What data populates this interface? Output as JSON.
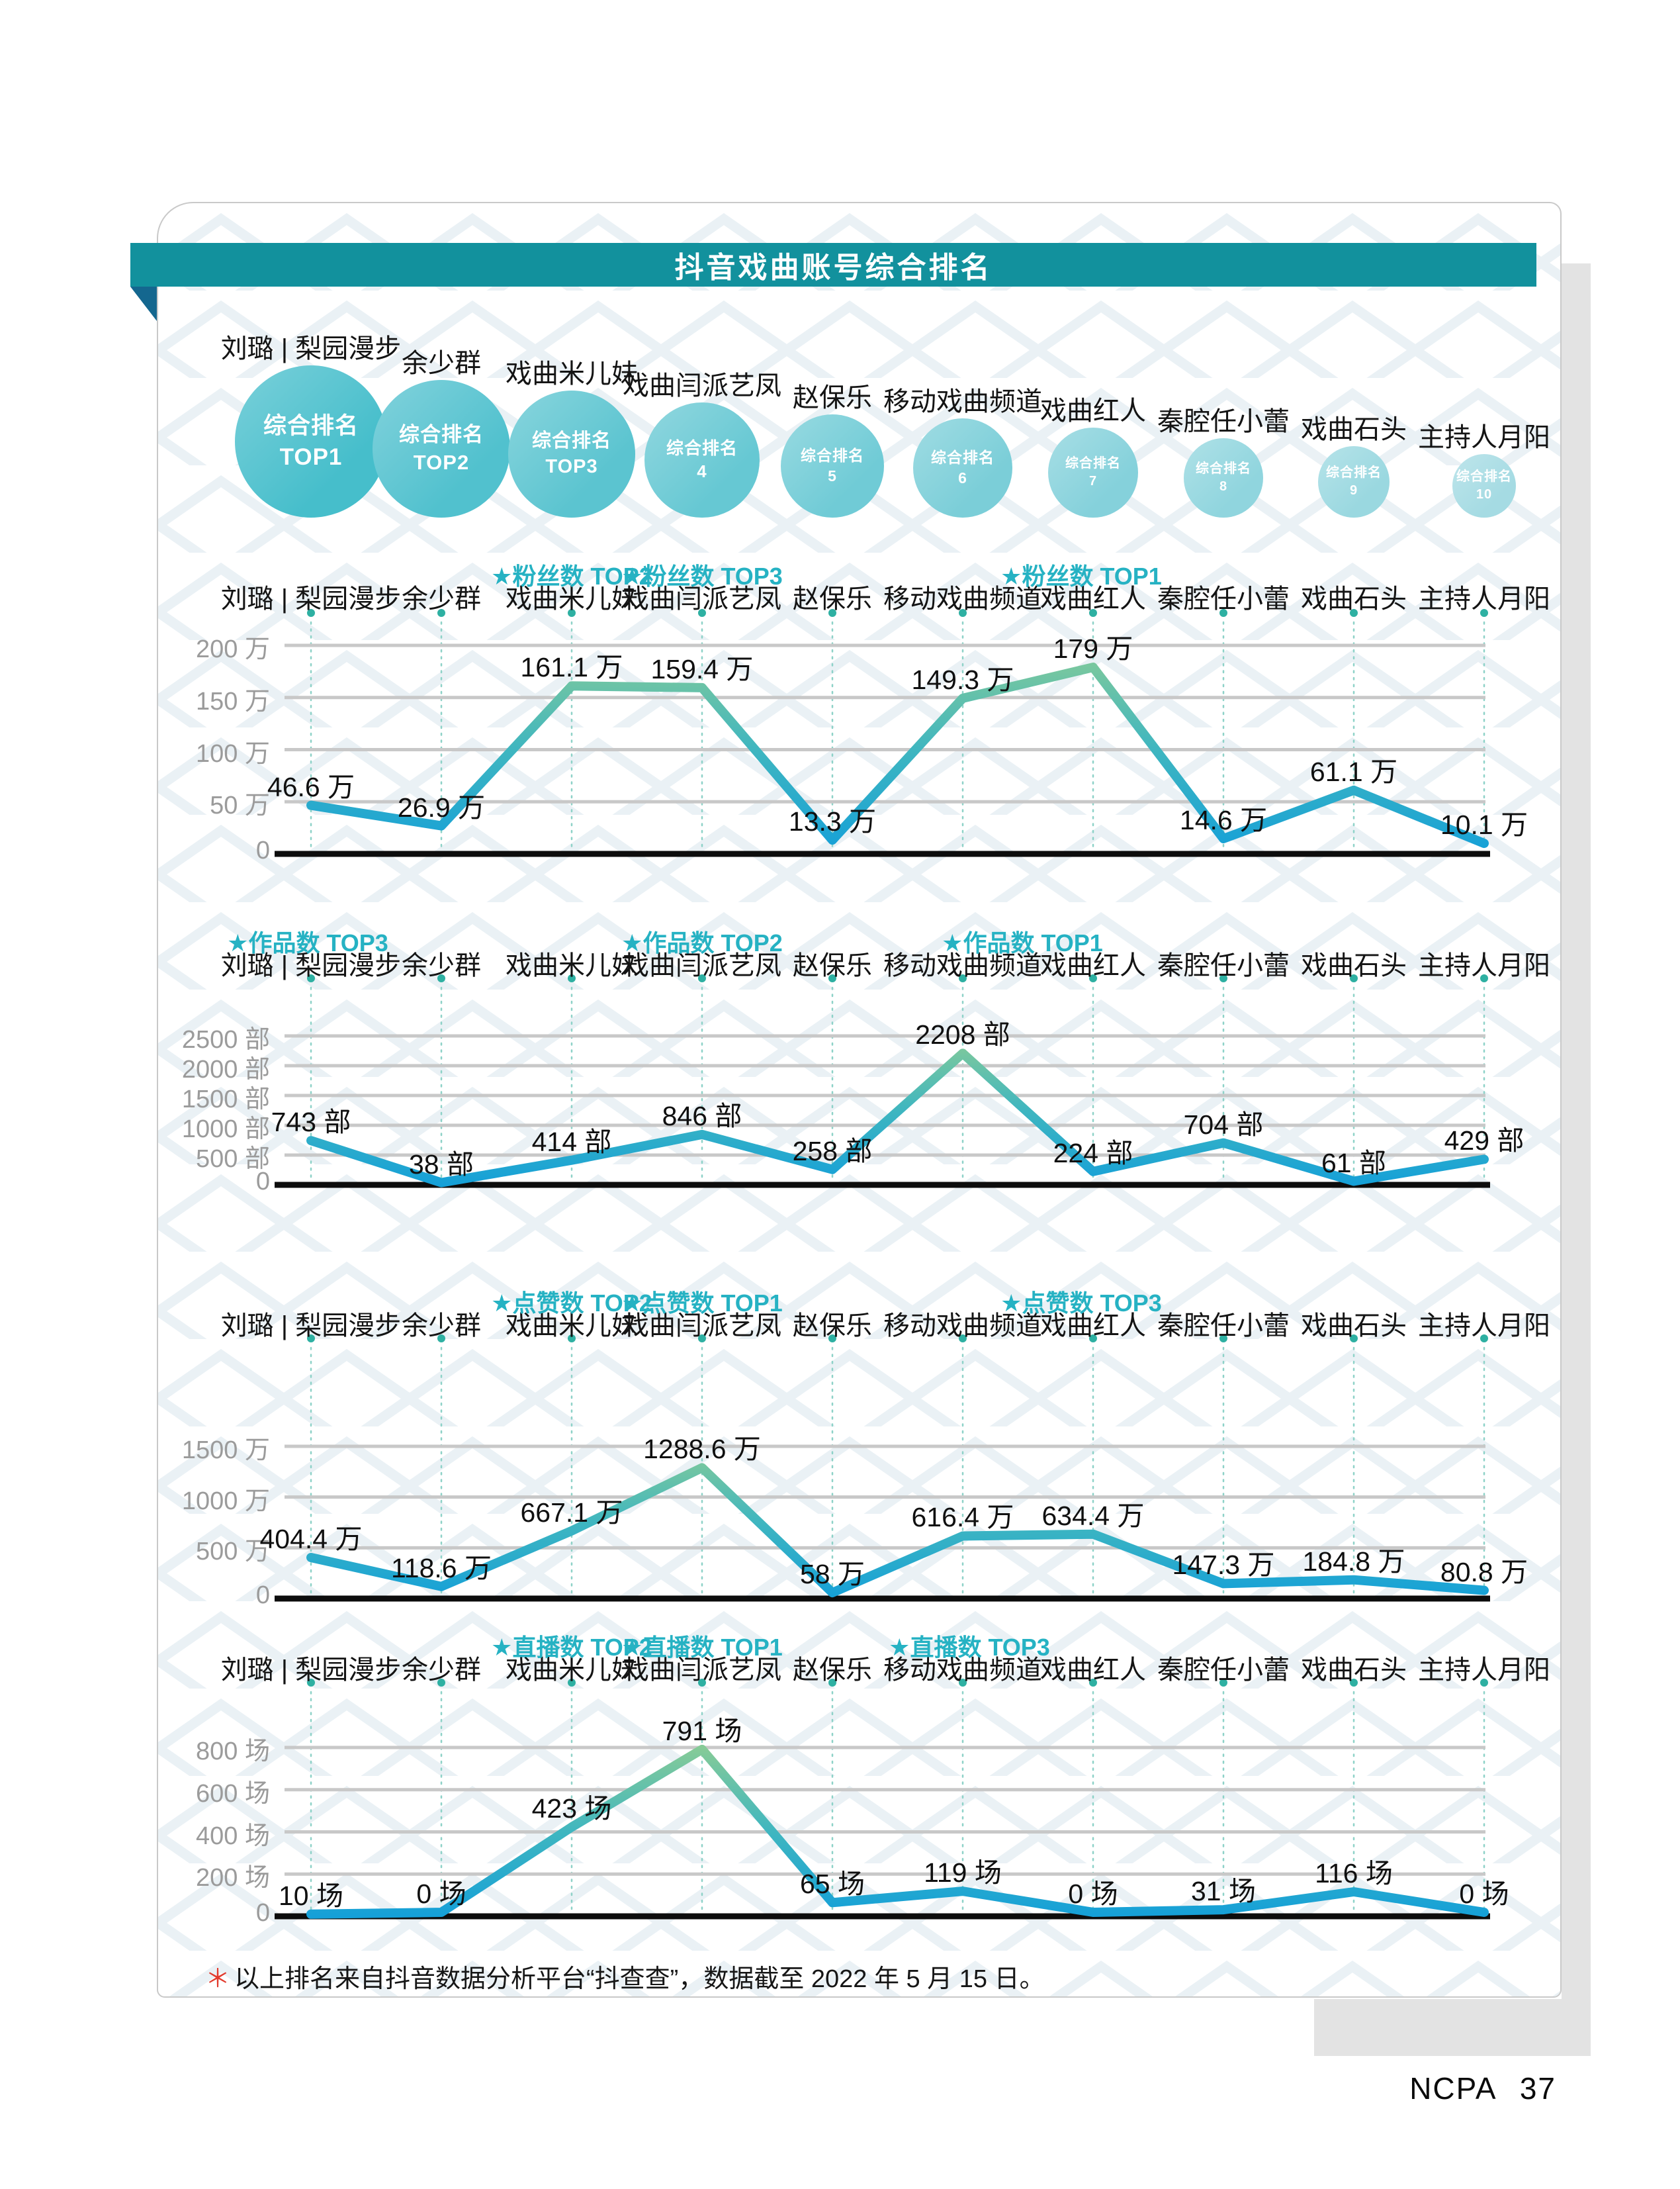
{
  "header": {
    "title": "抖音戏曲账号综合排名"
  },
  "accounts": [
    "刘璐 | 梨园漫步",
    "余少群",
    "戏曲米儿妹",
    "戏曲闫派艺凤",
    "赵保乐",
    "移动戏曲频道",
    "戏曲红人",
    "秦腔任小蕾",
    "戏曲石头",
    "主持人月阳"
  ],
  "overall_ranking": {
    "prefix": "综合排名",
    "ranks": [
      "TOP1",
      "TOP2",
      "TOP3",
      "4",
      "5",
      "6",
      "7",
      "8",
      "9",
      "10"
    ]
  },
  "chart_data": [
    {
      "type": "line",
      "metric": "粉丝数",
      "unit": "万",
      "top_tags": [
        "★粉丝数 TOP2",
        "★粉丝数 TOP3",
        "★粉丝数 TOP1"
      ],
      "values": [
        46.6,
        26.9,
        161.1,
        159.4,
        13.3,
        149.3,
        179,
        14.6,
        61.1,
        10.1
      ],
      "value_labels": [
        "46.6 万",
        "26.9 万",
        "161.1 万",
        "159.4 万",
        "13.3 万",
        "149.3 万",
        "179 万",
        "14.6 万",
        "61.1 万",
        "10.1 万"
      ],
      "ymax": 200,
      "yticks": [
        0,
        50,
        100,
        150,
        200
      ],
      "ytick_labels": [
        "0",
        "50 万",
        "100 万",
        "150 万",
        "200 万"
      ]
    },
    {
      "type": "line",
      "metric": "作品数",
      "unit": "部",
      "top_tags": [
        "★作品数 TOP3",
        "★作品数 TOP2",
        "★作品数 TOP1"
      ],
      "values": [
        743,
        38,
        414,
        846,
        258,
        2208,
        224,
        704,
        61,
        429
      ],
      "value_labels": [
        "743 部",
        "38 部",
        "414 部",
        "846 部",
        "258 部",
        "2208 部",
        "224 部",
        "704 部",
        "61 部",
        "429 部"
      ],
      "ymax": 2500,
      "yticks": [
        0,
        500,
        1000,
        1500,
        2000,
        2500
      ],
      "ytick_labels": [
        "0",
        "500 部",
        "1000 部",
        "1500 部",
        "2000 部",
        "2500 部"
      ]
    },
    {
      "type": "line",
      "metric": "点赞数",
      "unit": "万",
      "top_tags": [
        "★点赞数 TOP2",
        "★点赞数 TOP1",
        "★点赞数 TOP3"
      ],
      "values": [
        404.4,
        118.6,
        667.1,
        1288.6,
        58,
        616.4,
        634.4,
        147.3,
        184.8,
        80.8
      ],
      "value_labels": [
        "404.4 万",
        "118.6 万",
        "667.1 万",
        "1288.6 万",
        "58 万",
        "616.4 万",
        "634.4 万",
        "147.3 万",
        "184.8 万",
        "80.8 万"
      ],
      "ymax": 1500,
      "yticks": [
        0,
        500,
        1000,
        1500
      ],
      "ytick_labels": [
        "0",
        "500 万",
        "1000 万",
        "1500 万"
      ]
    },
    {
      "type": "line",
      "metric": "直播数",
      "unit": "场",
      "top_tags": [
        "★直播数 TOP2",
        "★直播数 TOP1",
        "★直播数 TOP3"
      ],
      "values": [
        10,
        0,
        423,
        791,
        65,
        119,
        0,
        31,
        116,
        0
      ],
      "value_labels": [
        "10 场",
        "0 场",
        "423 场",
        "791 场",
        "65 场",
        "119 场",
        "0 场",
        "31 场",
        "116 场",
        "0 场"
      ],
      "ymax": 800,
      "yticks": [
        0,
        200,
        400,
        600,
        800
      ],
      "ytick_labels": [
        "0",
        "200 场",
        "400 场",
        "600 场",
        "800 场"
      ]
    }
  ],
  "footer": {
    "asterisk": "＊",
    "note": "以上排名来自抖音数据分析平台“抖查查”，数据截至 2022 年 5 月 15 日。",
    "page_label": "NCPA 37"
  },
  "palette": {
    "banner": "#12919d",
    "banner_fold": "#14678f",
    "circle_dark": "#46becb",
    "circle_light": "#a5dbe3",
    "tag_text": "#26b2c3",
    "grid": "#c8c8c8",
    "baseline": "#0d0d0d",
    "column_dot": "#2eb0a2",
    "column_dotted_line": "#8ed2c8",
    "line_top": "#86cb97",
    "line_mid": "#3fb6c0",
    "line_bottom": "#15a0d8",
    "pattern": "#e3ecf2"
  }
}
